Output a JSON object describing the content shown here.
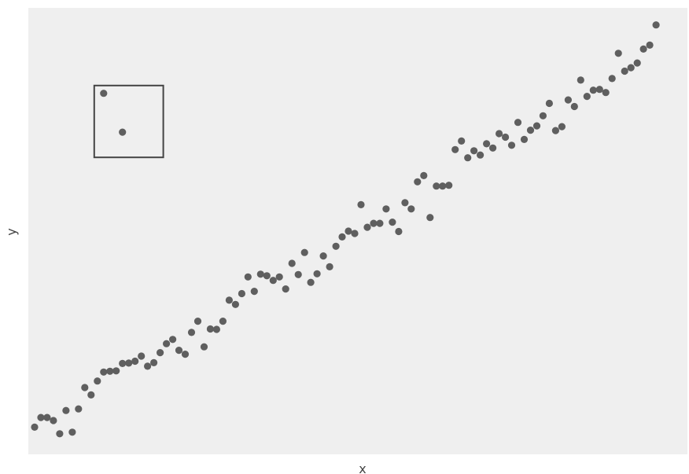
{
  "chart_data": {
    "type": "scatter",
    "xlabel": "x",
    "ylabel": "y",
    "xlim": [
      0,
      105
    ],
    "ylim": [
      0,
      115
    ],
    "grid": false,
    "show_ticks": false,
    "colors": {
      "panel": "#efefef",
      "point": "#5f5f5f",
      "box": "#444444"
    },
    "series": [
      {
        "x": [
          1,
          2,
          3,
          4,
          5,
          6,
          7,
          8,
          9,
          10,
          11,
          12,
          13,
          14,
          15,
          16,
          17,
          18,
          19,
          20,
          21,
          22,
          23,
          24,
          25,
          26,
          27,
          28,
          29,
          30,
          31,
          32,
          33,
          34,
          35,
          36,
          37,
          38,
          39,
          40,
          41,
          42,
          43,
          44,
          45,
          46,
          47,
          48,
          49,
          50,
          51,
          52,
          53,
          54,
          55,
          56,
          57,
          58,
          59,
          60,
          61,
          62,
          63,
          64,
          65,
          66,
          67,
          68,
          69,
          70,
          71,
          72,
          73,
          74,
          75,
          76,
          77,
          78,
          79,
          80,
          81,
          82,
          83,
          84,
          85,
          86,
          87,
          88,
          89,
          90,
          91,
          92,
          93,
          94,
          95,
          96,
          97,
          98,
          99,
          100
        ],
        "y": [
          7.0,
          9.5,
          9.5,
          8.7,
          5.3,
          11.3,
          5.7,
          11.7,
          17.2,
          15.3,
          18.9,
          21.2,
          21.4,
          21.5,
          23.4,
          23.5,
          24.0,
          25.3,
          22.7,
          23.6,
          26.2,
          28.5,
          29.6,
          26.8,
          25.8,
          31.4,
          34.3,
          27.7,
          32.3,
          32.2,
          34.3,
          39.7,
          38.6,
          41.4,
          45.7,
          42.0,
          46.4,
          46.0,
          44.8,
          45.7,
          42.6,
          49.2,
          46.3,
          52.0,
          44.3,
          46.5,
          51.1,
          48.3,
          53.6,
          56.0,
          57.5,
          56.9,
          64.3,
          58.5,
          59.5,
          59.5,
          63.2,
          59.8,
          57.4,
          64.8,
          63.2,
          70.2,
          71.8,
          61.0,
          69.1,
          69.1,
          69.3,
          78.5,
          80.7,
          76.4,
          78.2,
          77.1,
          80.0,
          78.9,
          82.6,
          81.7,
          79.6,
          85.5,
          81.1,
          83.5,
          84.6,
          87.2,
          90.4,
          83.4,
          84.4,
          91.3,
          89.6,
          96.4,
          92.2,
          93.8,
          94.0,
          93.2,
          96.8,
          103.3,
          98.7,
          99.6,
          100.8,
          104.4,
          105.4,
          110.6
        ],
        "outliers": {
          "x": [
            12,
            15
          ],
          "y": [
            93.0,
            83.0
          ]
        }
      }
    ],
    "annotations": [
      {
        "type": "rectangle",
        "x0": 10.5,
        "x1": 21.5,
        "y0": 76.5,
        "y1": 95.0
      }
    ]
  }
}
